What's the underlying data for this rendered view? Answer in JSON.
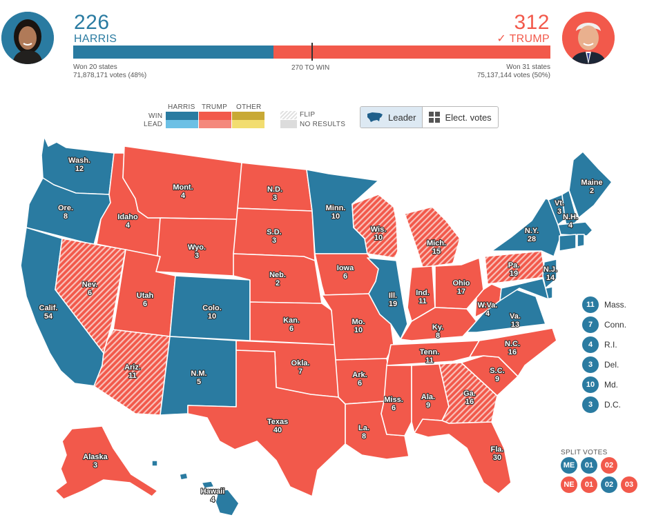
{
  "colors": {
    "harris": "#2a7ba1",
    "trump": "#f2594b",
    "harris_lead": "#6cc0e5",
    "trump_lead": "#f4887c",
    "other": "#c8a935",
    "other_lead": "#f2dd70",
    "no_results": "#dcdcdc",
    "flip": "#f6b6ae"
  },
  "header": {
    "harris": {
      "votes": "226",
      "name": "HARRIS",
      "states": "Won 20 states",
      "popular": "71,878,171 votes (48%)",
      "avatar_icon": "harris-portrait"
    },
    "trump": {
      "votes": "312",
      "name": "TRUMP",
      "check": "✓",
      "states": "Won 31 states",
      "popular": "75,137,144 votes (50%)",
      "avatar_icon": "trump-portrait"
    },
    "threshold": "270 TO WIN",
    "bar": {
      "harris_fraction": 0.42,
      "trump_fraction": 0.58,
      "threshold_fraction": 0.5
    }
  },
  "legend": {
    "columns": [
      "HARRIS",
      "TRUMP",
      "OTHER"
    ],
    "rows": [
      "WIN",
      "LEAD"
    ],
    "flip": "FLIP",
    "no_results": "NO RESULTS"
  },
  "toggle": {
    "leader": "Leader",
    "elect_votes": "Elect. votes",
    "active": "leader",
    "leader_icon": "us-map-icon",
    "elect_icon": "grid-icon"
  },
  "states": [
    {
      "abbr": "Wash.",
      "ev": "12",
      "winner": "harris"
    },
    {
      "abbr": "Ore.",
      "ev": "8",
      "winner": "harris"
    },
    {
      "abbr": "Calif.",
      "ev": "54",
      "winner": "harris"
    },
    {
      "abbr": "Idaho",
      "ev": "4",
      "winner": "trump"
    },
    {
      "abbr": "Nev.",
      "ev": "6",
      "winner": "trump",
      "flip": true
    },
    {
      "abbr": "Mont.",
      "ev": "4",
      "winner": "trump"
    },
    {
      "abbr": "Wyo.",
      "ev": "3",
      "winner": "trump"
    },
    {
      "abbr": "Utah",
      "ev": "6",
      "winner": "trump"
    },
    {
      "abbr": "Ariz.",
      "ev": "11",
      "winner": "trump",
      "flip": true
    },
    {
      "abbr": "Colo.",
      "ev": "10",
      "winner": "harris"
    },
    {
      "abbr": "N.M.",
      "ev": "5",
      "winner": "harris"
    },
    {
      "abbr": "N.D.",
      "ev": "3",
      "winner": "trump"
    },
    {
      "abbr": "S.D.",
      "ev": "3",
      "winner": "trump"
    },
    {
      "abbr": "Neb.",
      "ev": "2",
      "winner": "trump"
    },
    {
      "abbr": "Kan.",
      "ev": "6",
      "winner": "trump"
    },
    {
      "abbr": "Okla.",
      "ev": "7",
      "winner": "trump"
    },
    {
      "abbr": "Texas",
      "ev": "40",
      "winner": "trump"
    },
    {
      "abbr": "Minn.",
      "ev": "10",
      "winner": "harris"
    },
    {
      "abbr": "Iowa",
      "ev": "6",
      "winner": "trump"
    },
    {
      "abbr": "Mo.",
      "ev": "10",
      "winner": "trump"
    },
    {
      "abbr": "Ark.",
      "ev": "6",
      "winner": "trump"
    },
    {
      "abbr": "La.",
      "ev": "8",
      "winner": "trump"
    },
    {
      "abbr": "Wis.",
      "ev": "10",
      "winner": "trump",
      "flip": true
    },
    {
      "abbr": "Ill.",
      "ev": "19",
      "winner": "harris"
    },
    {
      "abbr": "Mich.",
      "ev": "15",
      "winner": "trump",
      "flip": true
    },
    {
      "abbr": "Ind.",
      "ev": "11",
      "winner": "trump"
    },
    {
      "abbr": "Ohio",
      "ev": "17",
      "winner": "trump"
    },
    {
      "abbr": "Ky.",
      "ev": "8",
      "winner": "trump"
    },
    {
      "abbr": "Tenn.",
      "ev": "11",
      "winner": "trump"
    },
    {
      "abbr": "Miss.",
      "ev": "6",
      "winner": "trump"
    },
    {
      "abbr": "Ala.",
      "ev": "9",
      "winner": "trump"
    },
    {
      "abbr": "Ga.",
      "ev": "16",
      "winner": "trump",
      "flip": true
    },
    {
      "abbr": "Fla.",
      "ev": "30",
      "winner": "trump"
    },
    {
      "abbr": "S.C.",
      "ev": "9",
      "winner": "trump"
    },
    {
      "abbr": "N.C.",
      "ev": "16",
      "winner": "trump"
    },
    {
      "abbr": "Va.",
      "ev": "13",
      "winner": "harris"
    },
    {
      "abbr": "W.Va.",
      "ev": "4",
      "winner": "trump"
    },
    {
      "abbr": "Pa.",
      "ev": "19",
      "winner": "trump",
      "flip": true
    },
    {
      "abbr": "N.Y.",
      "ev": "28",
      "winner": "harris"
    },
    {
      "abbr": "N.J.",
      "ev": "14",
      "winner": "harris"
    },
    {
      "abbr": "Vt.",
      "ev": "3",
      "winner": "harris"
    },
    {
      "abbr": "N.H.",
      "ev": "4",
      "winner": "harris"
    },
    {
      "abbr": "Maine",
      "ev": "2",
      "winner": "harris"
    },
    {
      "abbr": "Alaska",
      "ev": "3",
      "winner": "trump"
    },
    {
      "abbr": "Hawaii",
      "ev": "4",
      "winner": "harris"
    }
  ],
  "small_states": [
    {
      "ev": "11",
      "label": "Mass."
    },
    {
      "ev": "7",
      "label": "Conn."
    },
    {
      "ev": "4",
      "label": "R.I."
    },
    {
      "ev": "3",
      "label": "Del."
    },
    {
      "ev": "10",
      "label": "Md."
    },
    {
      "ev": "3",
      "label": "D.C."
    }
  ],
  "split_votes": {
    "title": "SPLIT VOTES",
    "maine": [
      {
        "label": "ME",
        "winner": "harris"
      },
      {
        "label": "01",
        "winner": "harris"
      },
      {
        "label": "02",
        "winner": "trump"
      }
    ],
    "nebraska": [
      {
        "label": "NE",
        "winner": "trump"
      },
      {
        "label": "01",
        "winner": "trump"
      },
      {
        "label": "02",
        "winner": "harris"
      },
      {
        "label": "03",
        "winner": "trump"
      }
    ]
  }
}
